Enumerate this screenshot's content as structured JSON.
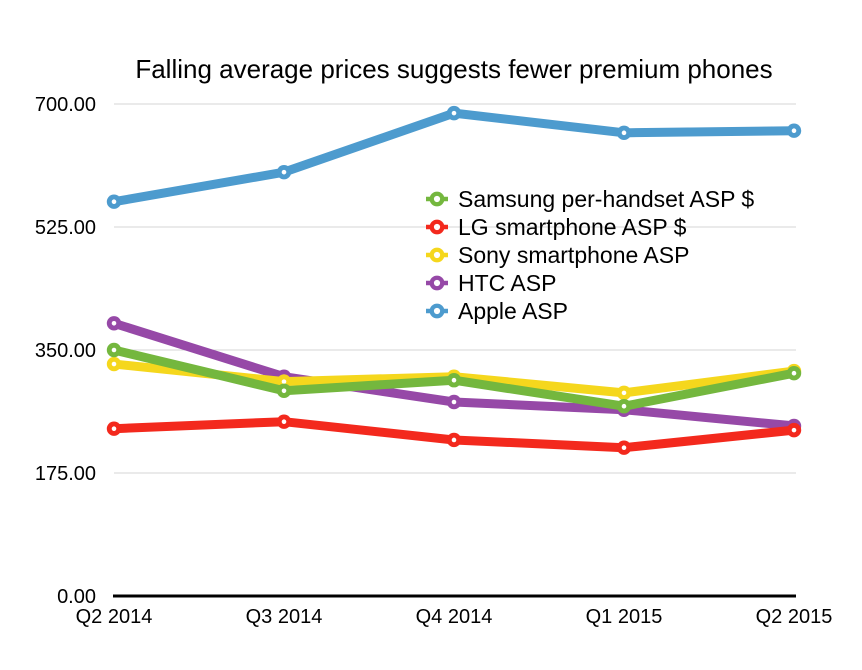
{
  "page": {
    "background_color": "#ffffff",
    "text_color": "#000000",
    "gridline_color": "#d5d5d5",
    "axis_color": "#000000"
  },
  "chart_data": {
    "type": "line",
    "title": "Falling average prices suggests fewer premium phones",
    "categories": [
      "Q2 2014",
      "Q3 2014",
      "Q4 2014",
      "Q1 2015",
      "Q2 2015"
    ],
    "series": [
      {
        "name": "Samsung per-handset ASP $",
        "color": "#74b73e",
        "values": [
          350,
          292,
          307,
          270,
          317
        ]
      },
      {
        "name": "LG smartphone ASP $",
        "color": "#f3291d",
        "values": [
          238,
          248,
          222,
          211,
          236
        ]
      },
      {
        "name": "Sony smartphone ASP",
        "color": "#f5d71d",
        "values": [
          330,
          305,
          312,
          289,
          320
        ]
      },
      {
        "name": "HTC ASP",
        "color": "#9649a7",
        "values": [
          388,
          312,
          276,
          265,
          242
        ]
      },
      {
        "name": "Apple ASP",
        "color": "#4d9bce",
        "values": [
          561,
          603,
          687,
          659,
          662
        ]
      }
    ],
    "draw_order": [
      4,
      3,
      2,
      0,
      1
    ],
    "xlabel": "",
    "ylabel": "",
    "ylim": [
      0,
      700
    ],
    "y_ticks": [
      0,
      175,
      350,
      525,
      700
    ],
    "y_tick_labels": [
      "0.00",
      "175.00",
      "350.00",
      "525.00",
      "700.00"
    ],
    "grid": true,
    "legend_position": "inside top-center, no border",
    "marker_style": "ring (colored dot with white hole)"
  }
}
